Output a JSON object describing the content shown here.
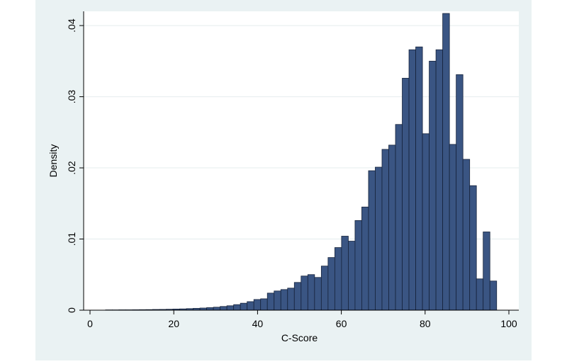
{
  "chart_data": {
    "type": "bar",
    "subtype": "histogram",
    "xlabel": "C-Score",
    "ylabel": "Density",
    "xlim": [
      0,
      100
    ],
    "ylim": [
      0,
      0.042
    ],
    "x_ticks": [
      {
        "value": 0,
        "label": "0"
      },
      {
        "value": 20,
        "label": "20"
      },
      {
        "value": 40,
        "label": "40"
      },
      {
        "value": 60,
        "label": "60"
      },
      {
        "value": 80,
        "label": "80"
      },
      {
        "value": 100,
        "label": "100"
      }
    ],
    "y_ticks": [
      {
        "value": 0,
        "label": "0"
      },
      {
        "value": 0.01,
        "label": ".01"
      },
      {
        "value": 0.02,
        "label": ".02"
      },
      {
        "value": 0.03,
        "label": ".03"
      },
      {
        "value": 0.04,
        "label": ".04"
      }
    ],
    "grid": true,
    "bin_start": 3.7,
    "bin_width": 1.61,
    "values": [
      4e-05,
      4e-05,
      5e-05,
      5e-05,
      6e-05,
      7e-05,
      8e-05,
      0.0001,
      0.00011,
      0.00013,
      0.00016,
      0.00018,
      0.00022,
      0.00026,
      0.0003,
      0.00036,
      0.00042,
      0.00052,
      0.00062,
      0.00078,
      0.00098,
      0.0012,
      0.0015,
      0.0016,
      0.0024,
      0.0027,
      0.0029,
      0.0031,
      0.0039,
      0.0048,
      0.005,
      0.0046,
      0.0062,
      0.0074,
      0.0088,
      0.0104,
      0.0097,
      0.0126,
      0.0145,
      0.0196,
      0.0201,
      0.0226,
      0.0232,
      0.0261,
      0.0326,
      0.0366,
      0.037,
      0.0248,
      0.035,
      0.0366,
      0.0417,
      0.0233,
      0.0331,
      0.0212,
      0.0175,
      0.0044,
      0.011,
      0.0041
    ],
    "colors": {
      "background": "#eaf2f3",
      "plot_background": "#ffffff",
      "bar_fill": "#3a5583",
      "bar_edge": "#16233b",
      "grid": "#e4ecee"
    }
  }
}
